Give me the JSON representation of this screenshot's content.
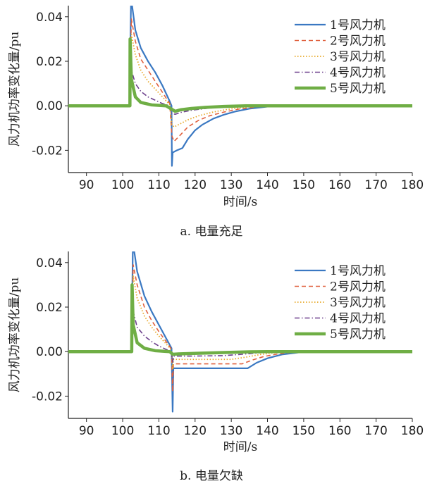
{
  "chart_data": [
    {
      "type": "line",
      "caption": "a. 电量充足",
      "xlabel": "时间/s",
      "ylabel": "风力机功率变化量/pu",
      "xlim": [
        85,
        180
      ],
      "ylim": [
        -0.03,
        0.045
      ],
      "xticks": [
        90,
        100,
        110,
        120,
        130,
        140,
        150,
        160,
        170,
        180
      ],
      "yticks": [
        -0.02,
        0.0,
        0.02,
        0.04
      ],
      "ytick_labels": [
        "-0.02",
        "0.00",
        "0.02",
        "0.04"
      ],
      "legend_position": "top-right",
      "grid": false,
      "series": [
        {
          "name": "1号风力机",
          "color": "#3a78c2",
          "dash": "solid",
          "width": 2.2,
          "points": [
            [
              85,
              0
            ],
            [
              102,
              0
            ],
            [
              102.05,
              0.02
            ],
            [
              102.3,
              0.046
            ],
            [
              102.6,
              0.045
            ],
            [
              103.5,
              0.034
            ],
            [
              105,
              0.026
            ],
            [
              107,
              0.02
            ],
            [
              109,
              0.015
            ],
            [
              111,
              0.009
            ],
            [
              113,
              0.002
            ],
            [
              113.5,
              0
            ],
            [
              113.6,
              -0.027
            ],
            [
              113.8,
              -0.021
            ],
            [
              115,
              -0.02
            ],
            [
              116.5,
              -0.019
            ],
            [
              118,
              -0.015
            ],
            [
              120,
              -0.011
            ],
            [
              122,
              -0.0085
            ],
            [
              125,
              -0.0058
            ],
            [
              128,
              -0.004
            ],
            [
              131,
              -0.0026
            ],
            [
              135,
              -0.0013
            ],
            [
              140,
              -0.0004
            ],
            [
              145,
              0
            ],
            [
              180,
              0
            ]
          ]
        },
        {
          "name": "2号风力机",
          "color": "#e0613f",
          "dash": "6,4",
          "width": 1.6,
          "points": [
            [
              85,
              0
            ],
            [
              102,
              0
            ],
            [
              102.05,
              0.015
            ],
            [
              102.4,
              0.039
            ],
            [
              103.5,
              0.029
            ],
            [
              105,
              0.021
            ],
            [
              107,
              0.016
            ],
            [
              109,
              0.011
            ],
            [
              111,
              0.006
            ],
            [
              113,
              0.001
            ],
            [
              113.6,
              -0.0135
            ],
            [
              114.2,
              -0.016
            ],
            [
              116,
              -0.013
            ],
            [
              118,
              -0.0095
            ],
            [
              121,
              -0.0065
            ],
            [
              124,
              -0.0045
            ],
            [
              128,
              -0.0028
            ],
            [
              132,
              -0.0015
            ],
            [
              137,
              -0.0005
            ],
            [
              143,
              0
            ],
            [
              180,
              0
            ]
          ]
        },
        {
          "name": "3号风力机",
          "color": "#e8a92a",
          "dash": "1.5,2.5",
          "width": 1.8,
          "points": [
            [
              85,
              0
            ],
            [
              102,
              0
            ],
            [
              102.05,
              0.012
            ],
            [
              102.4,
              0.032
            ],
            [
              103.5,
              0.023
            ],
            [
              105,
              0.016
            ],
            [
              107,
              0.011
            ],
            [
              109,
              0.0075
            ],
            [
              111,
              0.004
            ],
            [
              113,
              0.0005
            ],
            [
              113.6,
              -0.0085
            ],
            [
              114.2,
              -0.0095
            ],
            [
              116,
              -0.008
            ],
            [
              118,
              -0.0063
            ],
            [
              121,
              -0.0045
            ],
            [
              125,
              -0.0028
            ],
            [
              129,
              -0.0016
            ],
            [
              134,
              -0.0006
            ],
            [
              140,
              0
            ],
            [
              180,
              0
            ]
          ]
        },
        {
          "name": "4号风力机",
          "color": "#6b3f8c",
          "dash": "7,3,1.5,3",
          "width": 1.6,
          "points": [
            [
              85,
              0
            ],
            [
              102,
              0
            ],
            [
              102.05,
              0.008
            ],
            [
              102.4,
              0.016
            ],
            [
              103.5,
              0.01
            ],
            [
              105,
              0.0065
            ],
            [
              107,
              0.004
            ],
            [
              109,
              0.0025
            ],
            [
              111,
              0.001
            ],
            [
              113,
              0
            ],
            [
              113.6,
              -0.0035
            ],
            [
              114.5,
              -0.0038
            ],
            [
              116,
              -0.003
            ],
            [
              119,
              -0.002
            ],
            [
              123,
              -0.0012
            ],
            [
              128,
              -0.0005
            ],
            [
              134,
              0
            ],
            [
              180,
              0
            ]
          ]
        },
        {
          "name": "5号风力机",
          "color": "#6fae45",
          "dash": "solid",
          "width": 4.5,
          "points": [
            [
              85,
              0
            ],
            [
              102,
              0
            ],
            [
              102.05,
              0.03
            ],
            [
              102.4,
              0.012
            ],
            [
              103.5,
              0.004
            ],
            [
              105,
              0.0015
            ],
            [
              108,
              0.0004
            ],
            [
              112,
              0
            ],
            [
              113.5,
              -0.0015
            ],
            [
              114.5,
              -0.0025
            ],
            [
              116,
              -0.0018
            ],
            [
              119,
              -0.0012
            ],
            [
              123,
              -0.0007
            ],
            [
              128,
              -0.0003
            ],
            [
              134,
              0
            ],
            [
              180,
              0
            ]
          ]
        }
      ]
    },
    {
      "type": "line",
      "caption": "b. 电量欠缺",
      "xlabel": "时间/s",
      "ylabel": "风力机功率变化量/pu",
      "xlim": [
        85,
        180
      ],
      "ylim": [
        -0.03,
        0.045
      ],
      "xticks": [
        90,
        100,
        110,
        120,
        130,
        140,
        150,
        160,
        170,
        180
      ],
      "yticks": [
        -0.02,
        0.0,
        0.02,
        0.04
      ],
      "ytick_labels": [
        "-0.02",
        "0.00",
        "0.02",
        "0.04"
      ],
      "legend_position": "top-right",
      "grid": false,
      "series": [
        {
          "name": "1号风力机",
          "color": "#3a78c2",
          "dash": "solid",
          "width": 2.2,
          "points": [
            [
              85,
              0
            ],
            [
              102.5,
              0
            ],
            [
              102.6,
              0.02
            ],
            [
              102.8,
              0.046
            ],
            [
              103.2,
              0.045
            ],
            [
              104,
              0.036
            ],
            [
              106,
              0.025
            ],
            [
              108,
              0.018
            ],
            [
              110,
              0.012
            ],
            [
              112,
              0.006
            ],
            [
              113.5,
              0.0015
            ],
            [
              113.8,
              -0.027
            ],
            [
              114,
              -0.0075
            ],
            [
              120,
              -0.0075
            ],
            [
              128,
              -0.0075
            ],
            [
              134.5,
              -0.0075
            ],
            [
              137,
              -0.005
            ],
            [
              140,
              -0.003
            ],
            [
              144,
              -0.0013
            ],
            [
              149,
              -0.0003
            ],
            [
              155,
              0
            ],
            [
              180,
              0
            ]
          ]
        },
        {
          "name": "2号风力机",
          "color": "#e0613f",
          "dash": "6,4",
          "width": 1.6,
          "points": [
            [
              85,
              0
            ],
            [
              102.5,
              0
            ],
            [
              102.6,
              0.015
            ],
            [
              102.9,
              0.039
            ],
            [
              104,
              0.03
            ],
            [
              106,
              0.02
            ],
            [
              108,
              0.014
            ],
            [
              110,
              0.009
            ],
            [
              112,
              0.0045
            ],
            [
              113.5,
              0.001
            ],
            [
              113.8,
              -0.018
            ],
            [
              114,
              -0.0055
            ],
            [
              120,
              -0.0055
            ],
            [
              128,
              -0.0055
            ],
            [
              133,
              -0.0055
            ],
            [
              136,
              -0.0037
            ],
            [
              139,
              -0.0022
            ],
            [
              143,
              -0.001
            ],
            [
              148,
              -0.0002
            ],
            [
              153,
              0
            ],
            [
              180,
              0
            ]
          ]
        },
        {
          "name": "3号风力机",
          "color": "#e8a92a",
          "dash": "1.5,2.5",
          "width": 1.8,
          "points": [
            [
              85,
              0
            ],
            [
              102.5,
              0
            ],
            [
              102.6,
              0.012
            ],
            [
              102.9,
              0.034
            ],
            [
              104,
              0.024
            ],
            [
              106,
              0.016
            ],
            [
              108,
              0.011
            ],
            [
              110,
              0.007
            ],
            [
              112,
              0.0035
            ],
            [
              113.5,
              0.0005
            ],
            [
              113.8,
              -0.008
            ],
            [
              114,
              -0.0035
            ],
            [
              120,
              -0.0035
            ],
            [
              130,
              -0.0035
            ],
            [
              134,
              -0.0025
            ],
            [
              138,
              -0.0013
            ],
            [
              142,
              -0.0005
            ],
            [
              147,
              0
            ],
            [
              180,
              0
            ]
          ]
        },
        {
          "name": "4号风力机",
          "color": "#6b3f8c",
          "dash": "7,3,1.5,3",
          "width": 1.6,
          "points": [
            [
              85,
              0
            ],
            [
              102.5,
              0
            ],
            [
              102.6,
              0.008
            ],
            [
              102.9,
              0.018
            ],
            [
              104,
              0.011
            ],
            [
              106,
              0.007
            ],
            [
              108,
              0.0045
            ],
            [
              110,
              0.0025
            ],
            [
              112,
              0.001
            ],
            [
              113.5,
              0
            ],
            [
              113.8,
              -0.005
            ],
            [
              114,
              -0.002
            ],
            [
              120,
              -0.002
            ],
            [
              128,
              -0.0018
            ],
            [
              133,
              -0.0012
            ],
            [
              138,
              -0.0005
            ],
            [
              143,
              0
            ],
            [
              180,
              0
            ]
          ]
        },
        {
          "name": "5号风力机",
          "color": "#6fae45",
          "dash": "solid",
          "width": 4.5,
          "points": [
            [
              85,
              0
            ],
            [
              102.5,
              0
            ],
            [
              102.6,
              0.03
            ],
            [
              102.9,
              0.012
            ],
            [
              104,
              0.004
            ],
            [
              106,
              0.0015
            ],
            [
              109,
              0.0004
            ],
            [
              113,
              0
            ],
            [
              113.8,
              -0.0012
            ],
            [
              116,
              -0.001
            ],
            [
              122,
              -0.0007
            ],
            [
              128,
              -0.0004
            ],
            [
              135,
              -0.0001
            ],
            [
              140,
              0
            ],
            [
              180,
              0
            ]
          ]
        }
      ]
    }
  ]
}
